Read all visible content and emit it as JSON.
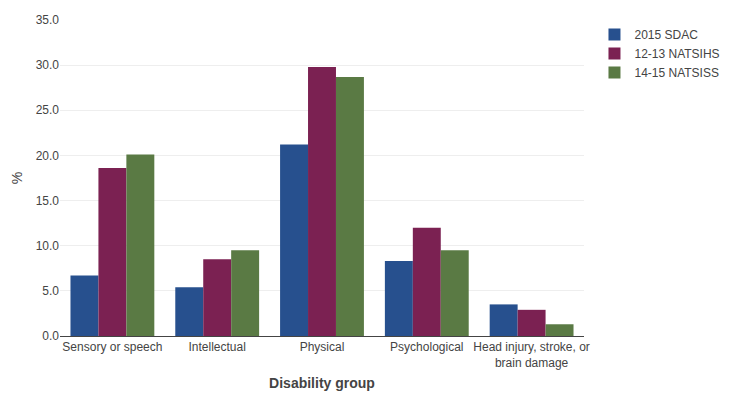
{
  "chart_data": {
    "type": "bar",
    "xlabel": "Disability group",
    "ylabel": "%",
    "categories": [
      "Sensory or speech",
      "Intellectual",
      "Physical",
      "Psychological",
      "Head injury, stroke, or\nbrain damage"
    ],
    "series": [
      {
        "name": "2015 SDAC",
        "color": "#27508e",
        "values": [
          6.7,
          5.4,
          21.2,
          8.3,
          3.5
        ]
      },
      {
        "name": "12-13 NATSIHS",
        "color": "#7b2152",
        "values": [
          18.6,
          8.5,
          29.8,
          12.0,
          2.9
        ]
      },
      {
        "name": "14-15 NATSISS",
        "color": "#5a7a44",
        "values": [
          20.1,
          9.5,
          28.7,
          9.5,
          1.3
        ]
      }
    ],
    "ylim": [
      0,
      35
    ],
    "yticks": [
      {
        "value": 0,
        "label": "0.0"
      },
      {
        "value": 5,
        "label": "5.0"
      },
      {
        "value": 10,
        "label": "10.0"
      },
      {
        "value": 15,
        "label": "15.0"
      },
      {
        "value": 20,
        "label": "20.0"
      },
      {
        "value": 25,
        "label": "25.0"
      },
      {
        "value": 30,
        "label": "30.0"
      },
      {
        "value": 35,
        "label": "35.0"
      }
    ],
    "grid": true,
    "legend": "right"
  }
}
